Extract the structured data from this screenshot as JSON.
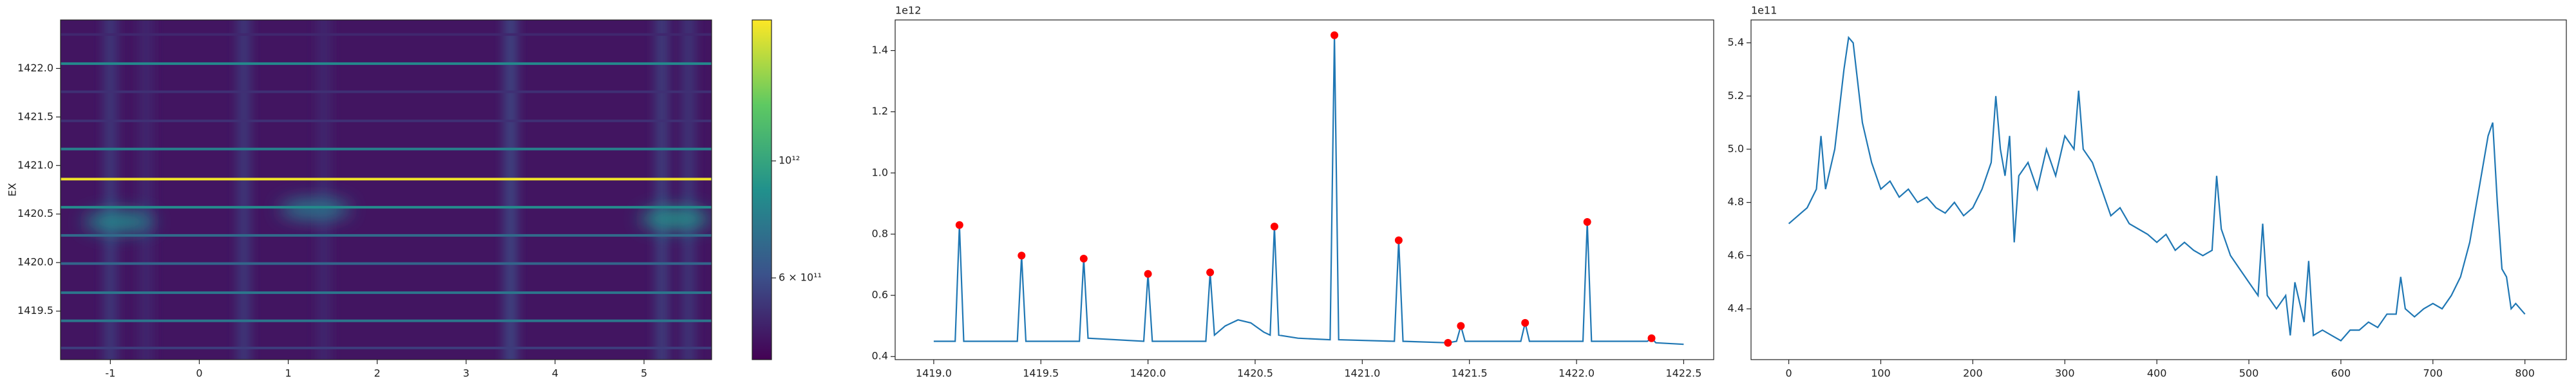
{
  "chart_data": [
    {
      "type": "heatmap",
      "ylabel": "EX",
      "xlim": [
        -1.56,
        5.76
      ],
      "ylim": [
        1419.0,
        1422.5
      ],
      "xticks": [
        -1,
        0,
        1,
        2,
        3,
        4,
        5
      ],
      "yticks": [
        1419.5,
        {
          "value": 1420.0,
          "label": "1420.0"
        },
        1420.5,
        {
          "value": 1421.0,
          "label": "1421.0"
        },
        1421.5,
        {
          "value": 1422.0,
          "label": "1422.0"
        }
      ],
      "background": 460000000000,
      "stripes": {
        "x": [
          -1.0,
          -0.6,
          0.5,
          1.4,
          3.5,
          5.2,
          5.5
        ],
        "values": [
          540000000000,
          500000000000,
          540000000000,
          500000000000,
          570000000000,
          550000000000,
          530000000000
        ]
      },
      "blobs": {
        "x": [
          -0.9,
          1.3,
          5.35
        ],
        "y": [
          1420.42,
          1420.55,
          1420.45
        ],
        "values": [
          850000000000,
          760000000000,
          900000000000
        ]
      },
      "lines": {
        "y": [
          1419.12,
          1419.4,
          1419.69,
          1419.99,
          1420.28,
          1420.57,
          1420.86,
          1421.17,
          1421.46,
          1421.76,
          1422.05,
          1422.35
        ],
        "values": [
          550000000000,
          750000000000,
          750000000000,
          680000000000,
          700000000000,
          850000000000,
          1800000000000,
          800000000000,
          520000000000,
          520000000000,
          840000000000,
          500000000000
        ]
      },
      "colorbar": {
        "scale": "log",
        "clim": [
          420000000000,
          1850000000000
        ],
        "ticks": [
          {
            "value": 1000000000000,
            "label": "10¹²"
          },
          {
            "value": 600000000000,
            "label": "6 × 10¹¹"
          }
        ]
      }
    },
    {
      "type": "line",
      "offset_text": "1e12",
      "color": "#1f77b4",
      "xlim": [
        1418.82,
        1422.64
      ],
      "ylim": [
        0.39,
        1.5
      ],
      "xticks": [
        {
          "value": 1419.0,
          "label": "1419.0"
        },
        1419.5,
        {
          "value": 1420.0,
          "label": "1420.0"
        },
        1420.5,
        {
          "value": 1421.0,
          "label": "1421.0"
        },
        1421.5,
        {
          "value": 1422.0,
          "label": "1422.0"
        },
        1422.5
      ],
      "yticks": [
        0.4,
        0.6,
        0.8,
        {
          "value": 1.0,
          "label": "1.0"
        },
        1.2,
        1.4
      ],
      "x": [
        1419.0,
        1419.1,
        1419.12,
        1419.14,
        1419.39,
        1419.41,
        1419.43,
        1419.68,
        1419.7,
        1419.72,
        1419.98,
        1420.0,
        1420.02,
        1420.27,
        1420.29,
        1420.31,
        1420.36,
        1420.42,
        1420.48,
        1420.54,
        1420.57,
        1420.59,
        1420.61,
        1420.7,
        1420.85,
        1420.87,
        1420.89,
        1421.15,
        1421.17,
        1421.19,
        1421.4,
        1421.44,
        1421.46,
        1421.48,
        1421.74,
        1421.76,
        1421.78,
        1422.03,
        1422.05,
        1422.07,
        1422.33,
        1422.35,
        1422.37,
        1422.5
      ],
      "values": [
        0.45,
        0.45,
        0.83,
        0.45,
        0.45,
        0.73,
        0.45,
        0.45,
        0.72,
        0.46,
        0.45,
        0.67,
        0.45,
        0.45,
        0.675,
        0.47,
        0.5,
        0.52,
        0.51,
        0.48,
        0.47,
        0.825,
        0.47,
        0.46,
        0.455,
        1.45,
        0.455,
        0.45,
        0.78,
        0.45,
        0.445,
        0.45,
        0.5,
        0.45,
        0.45,
        0.51,
        0.45,
        0.45,
        0.84,
        0.45,
        0.45,
        0.46,
        0.445,
        0.44
      ],
      "peaks": {
        "color": "#ff0000",
        "x": [
          1419.12,
          1419.41,
          1419.7,
          1420.0,
          1420.29,
          1420.59,
          1420.87,
          1421.17,
          1421.4,
          1421.46,
          1421.76,
          1422.05,
          1422.35
        ],
        "values": [
          0.83,
          0.73,
          0.72,
          0.67,
          0.675,
          0.825,
          1.45,
          0.78,
          0.445,
          0.5,
          0.51,
          0.84,
          0.46
        ]
      }
    },
    {
      "type": "line",
      "offset_text": "1e11",
      "color": "#1f77b4",
      "xlim": [
        -41,
        845
      ],
      "ylim": [
        4.209,
        5.486
      ],
      "xticks": [
        0,
        100,
        200,
        300,
        400,
        500,
        600,
        700,
        800
      ],
      "yticks": [
        4.4,
        4.6,
        4.8,
        {
          "value": 5.0,
          "label": "5.0"
        },
        5.2,
        5.4
      ],
      "x": [
        0,
        10,
        20,
        30,
        35,
        40,
        50,
        60,
        65,
        70,
        80,
        90,
        100,
        110,
        120,
        130,
        140,
        150,
        160,
        170,
        180,
        190,
        200,
        210,
        220,
        225,
        230,
        235,
        240,
        245,
        250,
        260,
        270,
        280,
        290,
        300,
        310,
        315,
        320,
        330,
        340,
        350,
        360,
        370,
        380,
        390,
        400,
        410,
        420,
        430,
        440,
        450,
        460,
        465,
        470,
        480,
        490,
        500,
        510,
        515,
        520,
        530,
        540,
        545,
        550,
        560,
        565,
        570,
        580,
        590,
        600,
        610,
        620,
        630,
        640,
        650,
        660,
        665,
        670,
        680,
        690,
        700,
        710,
        720,
        730,
        740,
        750,
        760,
        765,
        770,
        775,
        780,
        785,
        790,
        800
      ],
      "values": [
        4.72,
        4.75,
        4.78,
        4.85,
        5.05,
        4.85,
        5.0,
        5.3,
        5.42,
        5.4,
        5.1,
        4.95,
        4.85,
        4.88,
        4.82,
        4.85,
        4.8,
        4.82,
        4.78,
        4.76,
        4.8,
        4.75,
        4.78,
        4.85,
        4.95,
        5.2,
        5.0,
        4.9,
        5.05,
        4.65,
        4.9,
        4.95,
        4.85,
        5.0,
        4.9,
        5.05,
        5.0,
        5.22,
        5.0,
        4.95,
        4.85,
        4.75,
        4.78,
        4.72,
        4.7,
        4.68,
        4.65,
        4.68,
        4.62,
        4.65,
        4.62,
        4.6,
        4.62,
        4.9,
        4.7,
        4.6,
        4.55,
        4.5,
        4.45,
        4.72,
        4.45,
        4.4,
        4.45,
        4.3,
        4.5,
        4.35,
        4.58,
        4.3,
        4.32,
        4.3,
        4.28,
        4.32,
        4.32,
        4.35,
        4.33,
        4.38,
        4.38,
        4.52,
        4.4,
        4.37,
        4.4,
        4.42,
        4.4,
        4.45,
        4.52,
        4.65,
        4.85,
        5.05,
        5.1,
        4.8,
        4.55,
        4.52,
        4.4,
        4.42,
        4.38
      ]
    }
  ]
}
